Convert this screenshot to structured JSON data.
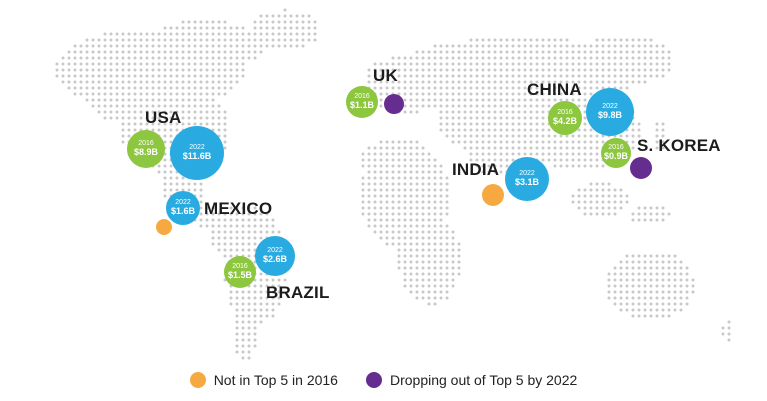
{
  "colors": {
    "bubble_2016": "#8dc63f",
    "bubble_2022": "#29abe2",
    "not_top5": "#f7a941",
    "dropping": "#662d91",
    "map_dots": "#c8c8c8"
  },
  "countries": {
    "usa": {
      "name": "USA",
      "b2016": {
        "year": "2016",
        "value": "$8.9B"
      },
      "b2022": {
        "year": "2022",
        "value": "$11.6B"
      }
    },
    "mexico": {
      "name": "MEXICO",
      "b2022": {
        "year": "2022",
        "value": "$1.6B"
      }
    },
    "brazil": {
      "name": "BRAZIL",
      "b2016": {
        "year": "2016",
        "value": "$1.5B"
      },
      "b2022": {
        "year": "2022",
        "value": "$2.6B"
      }
    },
    "uk": {
      "name": "UK",
      "b2016": {
        "year": "2016",
        "value": "$1.1B"
      }
    },
    "india": {
      "name": "INDIA",
      "b2022": {
        "year": "2022",
        "value": "$3.1B"
      }
    },
    "china": {
      "name": "CHINA",
      "b2016": {
        "year": "2016",
        "value": "$4.2B"
      },
      "b2022": {
        "year": "2022",
        "value": "$9.8B"
      }
    },
    "skorea": {
      "name": "S. KOREA",
      "b2016": {
        "year": "2016",
        "value": "$0.9B"
      }
    }
  },
  "legend": {
    "not_top5": "Not in Top 5 in 2016",
    "dropping": "Dropping out of Top 5 by 2022"
  }
}
